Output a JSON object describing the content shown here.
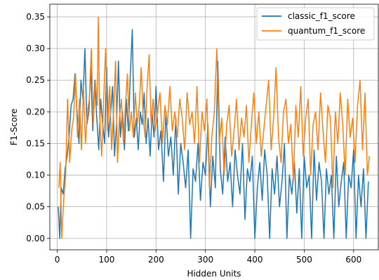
{
  "chart_data": {
    "type": "line",
    "title": "",
    "xlabel": "Hidden Units",
    "ylabel": "F1-Score",
    "xlim": [
      -15,
      650
    ],
    "ylim": [
      -0.018,
      0.37
    ],
    "xticks": [
      0,
      100,
      200,
      300,
      400,
      500,
      600
    ],
    "yticks": [
      0.0,
      0.05,
      0.1,
      0.15,
      0.2,
      0.25,
      0.3,
      0.35
    ],
    "ytick_labels": [
      "0.00",
      "0.05",
      "0.10",
      "0.15",
      "0.20",
      "0.25",
      "0.30",
      "0.35"
    ],
    "grid": true,
    "legend": "upper right",
    "colors": {
      "classic": "#1f77b4",
      "quantum": "#ff7f0e"
    },
    "series": [
      {
        "name": "classic_f1_score",
        "x": [
          2,
          5,
          8,
          12,
          16,
          20,
          24,
          28,
          32,
          36,
          40,
          44,
          48,
          52,
          56,
          60,
          64,
          68,
          72,
          76,
          80,
          84,
          88,
          92,
          96,
          100,
          104,
          108,
          112,
          116,
          120,
          124,
          128,
          132,
          136,
          140,
          144,
          148,
          152,
          156,
          160,
          164,
          168,
          172,
          176,
          180,
          184,
          188,
          192,
          196,
          200,
          205,
          210,
          215,
          220,
          225,
          230,
          235,
          240,
          245,
          250,
          255,
          260,
          265,
          270,
          275,
          280,
          285,
          290,
          295,
          300,
          305,
          310,
          315,
          320,
          325,
          330,
          335,
          340,
          345,
          350,
          355,
          360,
          365,
          370,
          375,
          380,
          385,
          390,
          395,
          400,
          405,
          410,
          415,
          420,
          425,
          430,
          435,
          440,
          445,
          450,
          455,
          460,
          465,
          470,
          475,
          480,
          485,
          490,
          495,
          500,
          505,
          510,
          515,
          520,
          525,
          530,
          535,
          540,
          545,
          550,
          555,
          560,
          565,
          570,
          575,
          580,
          585,
          590,
          595,
          600,
          605,
          610,
          615,
          620,
          625,
          630
        ],
        "y": [
          0.05,
          0.0,
          0.08,
          0.07,
          0.11,
          0.13,
          0.16,
          0.21,
          0.22,
          0.26,
          0.2,
          0.15,
          0.25,
          0.22,
          0.3,
          0.18,
          0.2,
          0.27,
          0.17,
          0.25,
          0.19,
          0.14,
          0.22,
          0.18,
          0.15,
          0.27,
          0.16,
          0.2,
          0.24,
          0.13,
          0.18,
          0.28,
          0.16,
          0.2,
          0.14,
          0.22,
          0.17,
          0.26,
          0.33,
          0.16,
          0.19,
          0.14,
          0.2,
          0.18,
          0.23,
          0.15,
          0.19,
          0.13,
          0.2,
          0.16,
          0.24,
          0.14,
          0.17,
          0.09,
          0.2,
          0.13,
          0.16,
          0.1,
          0.19,
          0.07,
          0.15,
          0.12,
          0.08,
          0.14,
          0.0,
          0.11,
          0.09,
          0.15,
          0.06,
          0.12,
          0.1,
          0.18,
          0.05,
          0.13,
          0.08,
          0.28,
          0.11,
          0.07,
          0.16,
          0.09,
          0.12,
          0.05,
          0.14,
          0.1,
          0.07,
          0.15,
          0.03,
          0.11,
          0.09,
          0.13,
          0.0,
          0.08,
          0.12,
          0.06,
          0.14,
          0.1,
          0.0,
          0.11,
          0.07,
          0.13,
          0.05,
          0.09,
          0.15,
          0.0,
          0.1,
          0.07,
          0.12,
          0.04,
          0.11,
          0.0,
          0.13,
          0.08,
          0.1,
          0.0,
          0.14,
          0.06,
          0.12,
          0.09,
          0.0,
          0.11,
          0.07,
          0.1,
          0.0,
          0.13,
          0.05,
          0.09,
          0.12,
          0.0,
          0.1,
          0.08,
          0.14,
          0.0,
          0.1,
          0.05,
          0.11,
          0.0,
          0.09
        ]
      },
      {
        "name": "quantum_f1_score",
        "x": [
          3,
          6,
          9,
          13,
          17,
          21,
          25,
          29,
          33,
          37,
          41,
          45,
          49,
          53,
          57,
          61,
          65,
          69,
          73,
          77,
          81,
          83,
          86,
          90,
          94,
          98,
          102,
          106,
          110,
          114,
          118,
          122,
          126,
          130,
          134,
          138,
          142,
          146,
          150,
          154,
          158,
          162,
          166,
          170,
          174,
          178,
          182,
          186,
          190,
          194,
          198,
          203,
          208,
          213,
          218,
          223,
          228,
          233,
          238,
          243,
          248,
          253,
          258,
          263,
          268,
          273,
          278,
          283,
          288,
          293,
          298,
          303,
          308,
          313,
          318,
          323,
          328,
          333,
          338,
          343,
          348,
          353,
          358,
          363,
          368,
          373,
          378,
          383,
          388,
          393,
          398,
          403,
          408,
          413,
          418,
          423,
          428,
          433,
          438,
          443,
          448,
          453,
          458,
          463,
          468,
          473,
          478,
          483,
          488,
          493,
          498,
          503,
          508,
          513,
          518,
          523,
          528,
          533,
          538,
          543,
          548,
          553,
          558,
          563,
          568,
          573,
          578,
          583,
          588,
          593,
          598,
          603,
          608,
          613,
          618,
          623,
          628,
          632
        ],
        "y": [
          0.08,
          0.12,
          0.0,
          0.06,
          0.1,
          0.22,
          0.12,
          0.17,
          0.19,
          0.26,
          0.16,
          0.22,
          0.14,
          0.24,
          0.15,
          0.2,
          0.22,
          0.3,
          0.18,
          0.25,
          0.21,
          0.35,
          0.19,
          0.13,
          0.22,
          0.3,
          0.17,
          0.24,
          0.14,
          0.2,
          0.28,
          0.12,
          0.19,
          0.22,
          0.15,
          0.21,
          0.26,
          0.17,
          0.2,
          0.16,
          0.23,
          0.18,
          0.21,
          0.27,
          0.19,
          0.16,
          0.24,
          0.29,
          0.18,
          0.22,
          0.17,
          0.2,
          0.23,
          0.15,
          0.21,
          0.18,
          0.24,
          0.17,
          0.2,
          0.16,
          0.22,
          0.19,
          0.14,
          0.23,
          0.18,
          0.2,
          0.15,
          0.24,
          0.12,
          0.2,
          0.17,
          0.22,
          0.08,
          0.16,
          0.2,
          0.3,
          0.15,
          0.19,
          0.1,
          0.18,
          0.21,
          0.13,
          0.17,
          0.22,
          0.14,
          0.19,
          0.16,
          0.21,
          0.12,
          0.18,
          0.23,
          0.15,
          0.2,
          0.13,
          0.17,
          0.21,
          0.25,
          0.14,
          0.19,
          0.27,
          0.16,
          0.12,
          0.2,
          0.22,
          0.15,
          0.18,
          0.09,
          0.21,
          0.16,
          0.24,
          0.13,
          0.19,
          0.22,
          0.1,
          0.18,
          0.2,
          0.14,
          0.23,
          0.17,
          0.12,
          0.21,
          0.19,
          0.08,
          0.2,
          0.15,
          0.23,
          0.18,
          0.1,
          0.22,
          0.16,
          0.19,
          0.12,
          0.21,
          0.25,
          0.14,
          0.23,
          0.1,
          0.13
        ]
      }
    ]
  }
}
